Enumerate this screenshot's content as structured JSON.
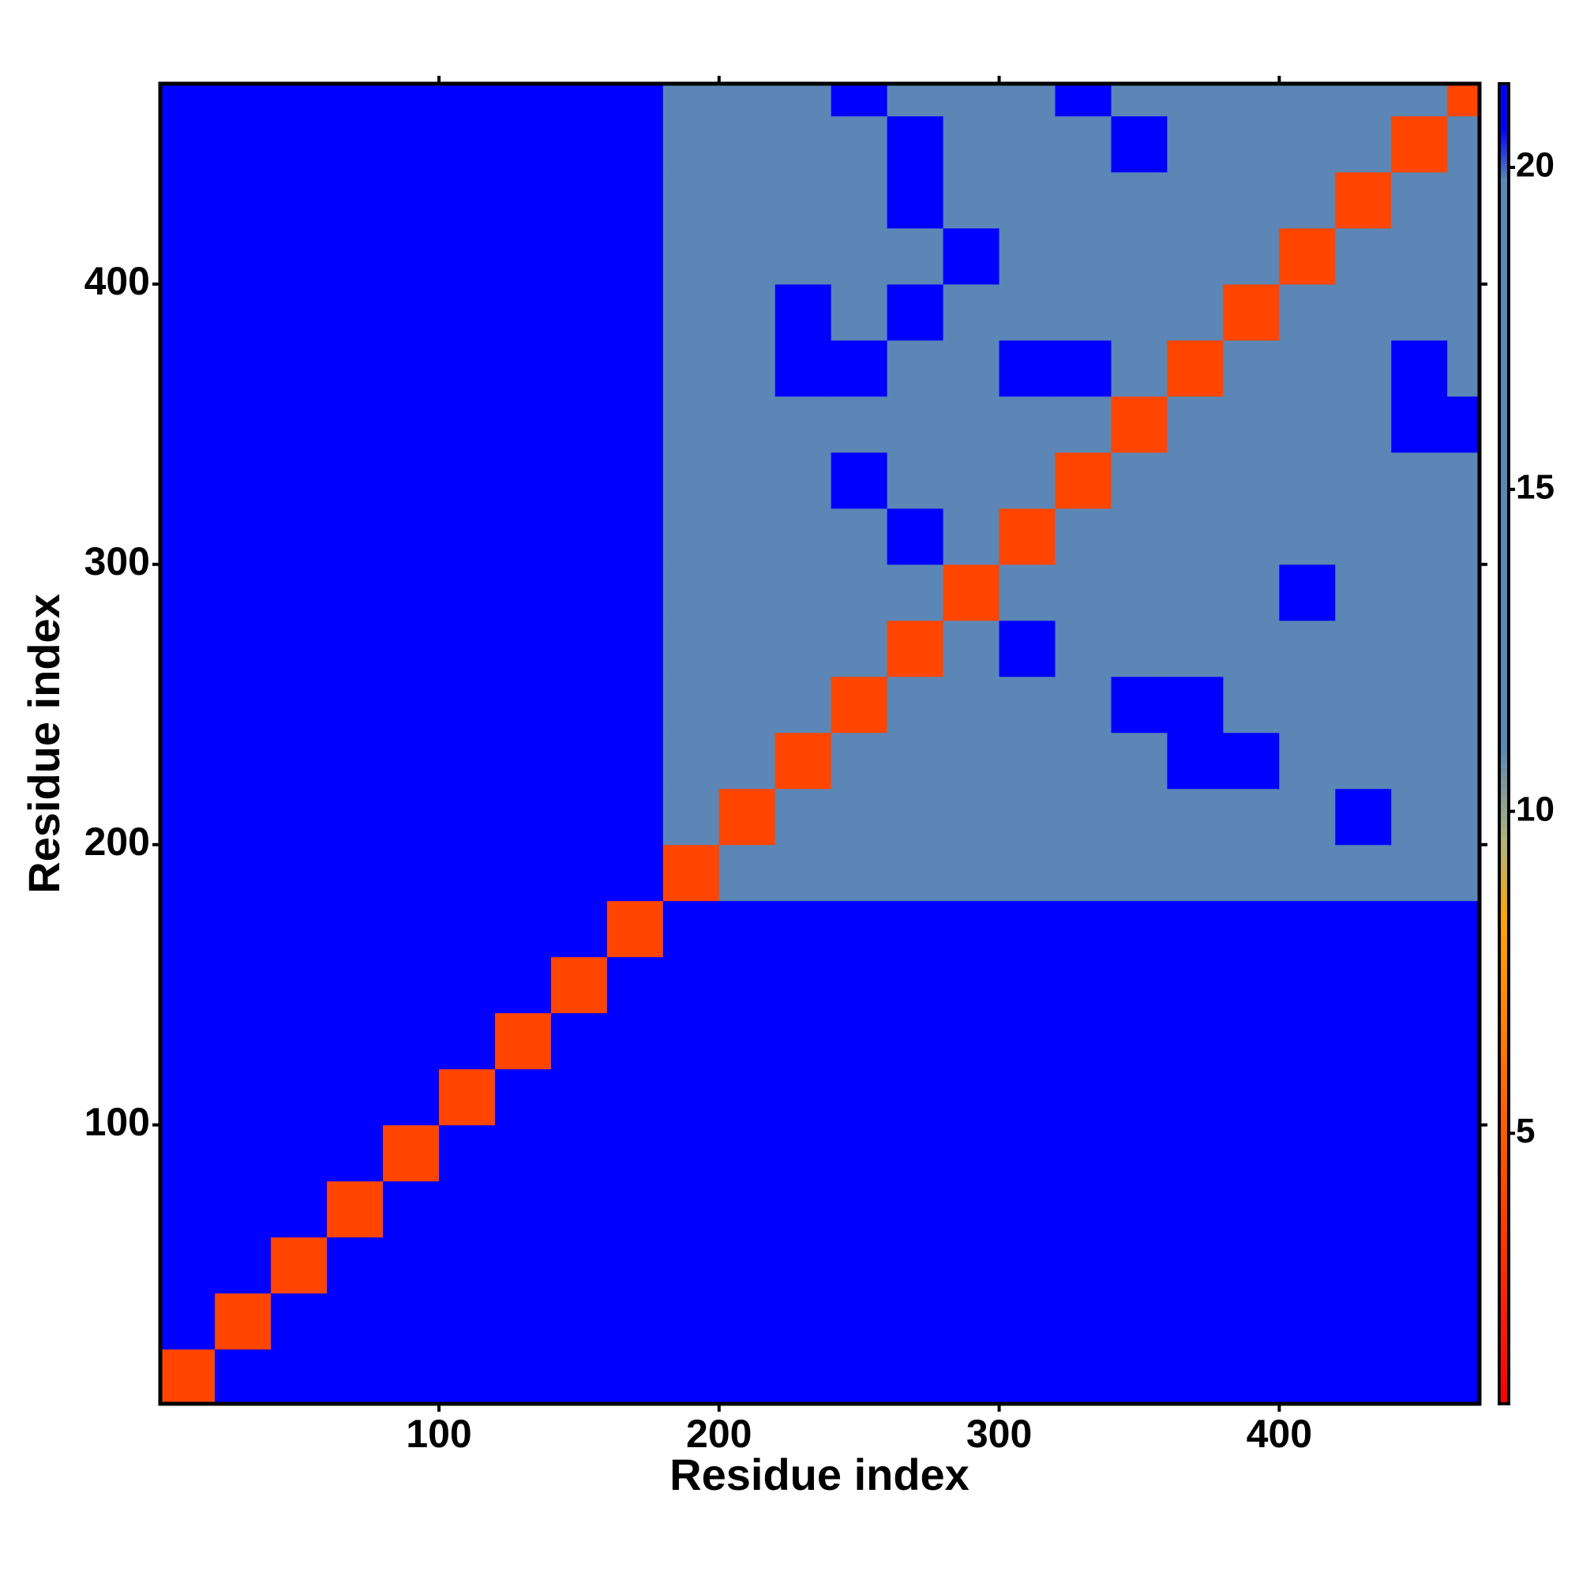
{
  "chart_data": {
    "type": "heatmap",
    "xlabel": "Residue index",
    "ylabel": "Residue index",
    "xlim": [
      0.5,
      471.5
    ],
    "ylim": [
      0.5,
      471.5
    ],
    "xticks": [
      100,
      200,
      300,
      400
    ],
    "yticks": [
      100,
      200,
      300,
      400
    ],
    "x_bins": [
      0,
      20,
      40,
      60,
      80,
      100,
      120,
      140,
      160,
      180,
      200,
      220,
      240,
      260,
      280,
      300,
      320,
      340,
      360,
      380,
      400,
      420,
      440,
      460,
      480
    ],
    "y_bins": [
      0,
      20,
      40,
      60,
      80,
      100,
      120,
      140,
      160,
      180,
      200,
      220,
      240,
      260,
      280,
      300,
      320,
      340,
      360,
      380,
      400,
      420,
      440,
      460,
      480
    ],
    "z": [
      [
        4,
        21,
        21,
        21,
        21,
        21,
        21,
        21,
        21,
        21,
        21,
        21,
        21,
        21,
        21,
        21,
        21,
        21,
        21,
        21,
        21,
        21,
        21,
        21
      ],
      [
        21,
        4,
        21,
        21,
        21,
        21,
        21,
        21,
        21,
        21,
        21,
        21,
        21,
        21,
        21,
        21,
        21,
        21,
        21,
        21,
        21,
        21,
        21,
        21
      ],
      [
        21,
        21,
        4,
        21,
        21,
        21,
        21,
        21,
        21,
        21,
        21,
        21,
        21,
        21,
        21,
        21,
        21,
        21,
        21,
        21,
        21,
        21,
        21,
        21
      ],
      [
        21,
        21,
        21,
        4,
        21,
        21,
        21,
        21,
        21,
        21,
        21,
        21,
        21,
        21,
        21,
        21,
        21,
        21,
        21,
        21,
        21,
        21,
        21,
        21
      ],
      [
        21,
        21,
        21,
        21,
        4,
        21,
        21,
        21,
        21,
        21,
        21,
        21,
        21,
        21,
        21,
        21,
        21,
        21,
        21,
        21,
        21,
        21,
        21,
        21
      ],
      [
        21,
        21,
        21,
        21,
        21,
        4,
        21,
        21,
        21,
        21,
        21,
        21,
        21,
        21,
        21,
        21,
        21,
        21,
        21,
        21,
        21,
        21,
        21,
        21
      ],
      [
        21,
        21,
        21,
        21,
        21,
        21,
        4,
        21,
        21,
        21,
        21,
        21,
        21,
        21,
        21,
        21,
        21,
        21,
        21,
        21,
        21,
        21,
        21,
        21
      ],
      [
        21,
        21,
        21,
        21,
        21,
        21,
        21,
        4,
        21,
        21,
        21,
        21,
        21,
        21,
        21,
        21,
        21,
        21,
        21,
        21,
        21,
        21,
        21,
        21
      ],
      [
        21,
        21,
        21,
        21,
        21,
        21,
        21,
        21,
        4,
        21,
        21,
        21,
        21,
        21,
        21,
        21,
        21,
        21,
        21,
        21,
        21,
        21,
        21,
        21
      ],
      [
        21,
        21,
        21,
        21,
        21,
        21,
        21,
        21,
        21,
        4,
        11,
        11,
        15,
        15,
        15,
        15,
        15,
        15,
        15,
        15,
        15,
        15,
        15,
        15
      ],
      [
        21,
        21,
        21,
        21,
        21,
        21,
        21,
        21,
        21,
        11,
        4,
        11,
        11,
        15,
        15,
        15,
        15,
        15,
        15,
        15,
        15,
        21,
        15,
        15
      ],
      [
        21,
        21,
        21,
        21,
        21,
        21,
        21,
        21,
        21,
        15,
        11,
        4,
        11,
        15,
        15,
        15,
        15,
        15,
        21,
        21,
        15,
        15,
        15,
        15
      ],
      [
        21,
        21,
        21,
        21,
        21,
        21,
        21,
        21,
        21,
        15,
        15,
        11,
        4,
        11,
        15,
        15,
        15,
        21,
        21,
        15,
        15,
        15,
        15,
        15
      ],
      [
        21,
        21,
        21,
        21,
        21,
        21,
        21,
        21,
        21,
        15,
        15,
        15,
        11,
        4,
        11,
        21,
        15,
        15,
        15,
        15,
        15,
        15,
        15,
        15
      ],
      [
        21,
        21,
        21,
        21,
        21,
        21,
        21,
        21,
        21,
        15,
        15,
        15,
        15,
        11,
        4,
        11,
        15,
        15,
        15,
        15,
        21,
        15,
        15,
        15
      ],
      [
        21,
        21,
        21,
        21,
        21,
        21,
        21,
        21,
        21,
        15,
        12,
        15,
        15,
        21,
        11,
        4,
        11,
        15,
        15,
        12,
        15,
        15,
        15,
        15
      ],
      [
        21,
        21,
        21,
        21,
        21,
        21,
        21,
        21,
        21,
        15,
        15,
        15,
        21,
        15,
        15,
        11,
        4,
        11,
        15,
        15,
        15,
        15,
        15,
        15
      ],
      [
        21,
        21,
        21,
        21,
        21,
        21,
        21,
        21,
        21,
        15,
        15,
        15,
        15,
        15,
        15,
        15,
        11,
        4,
        11,
        15,
        15,
        15,
        21,
        21
      ],
      [
        21,
        21,
        21,
        21,
        21,
        21,
        21,
        21,
        21,
        15,
        15,
        21,
        21,
        15,
        15,
        21,
        21,
        11,
        4,
        11,
        15,
        15,
        21,
        15
      ],
      [
        21,
        21,
        21,
        21,
        21,
        21,
        21,
        21,
        21,
        15,
        15,
        21,
        15,
        21,
        15,
        15,
        15,
        15,
        11,
        4,
        11,
        15,
        15,
        15
      ],
      [
        21,
        21,
        21,
        21,
        21,
        21,
        21,
        21,
        21,
        15,
        15,
        15,
        11,
        15,
        21,
        15,
        15,
        15,
        15,
        11,
        4,
        11,
        15,
        15
      ],
      [
        21,
        21,
        21,
        21,
        21,
        21,
        21,
        21,
        21,
        15,
        15,
        15,
        15,
        21,
        15,
        12,
        15,
        15,
        15,
        15,
        11,
        4,
        11,
        11
      ],
      [
        21,
        21,
        21,
        21,
        21,
        21,
        21,
        21,
        21,
        15,
        15,
        15,
        15,
        21,
        15,
        15,
        15,
        21,
        15,
        15,
        15,
        11,
        4,
        11
      ],
      [
        21,
        21,
        21,
        21,
        21,
        21,
        21,
        21,
        21,
        15,
        15,
        15,
        21,
        15,
        15,
        15,
        21,
        15,
        15,
        15,
        15,
        15,
        11,
        4
      ]
    ],
    "colorbar": {
      "lim": [
        0.8,
        21.3
      ],
      "ticks": [
        5,
        10,
        15,
        20
      ],
      "stops": [
        {
          "value": 0.8,
          "color": "#ff0000"
        },
        {
          "value": 5,
          "color": "#ff5a00"
        },
        {
          "value": 8.3,
          "color": "#ffa500"
        },
        {
          "value": 9.5,
          "color": "#b3b47a"
        },
        {
          "value": 11,
          "color": "#5b86b5"
        },
        {
          "value": 19.8,
          "color": "#5b86b5"
        },
        {
          "value": 20.6,
          "color": "#0000ff"
        },
        {
          "value": 21.3,
          "color": "#0000ff"
        }
      ]
    }
  }
}
